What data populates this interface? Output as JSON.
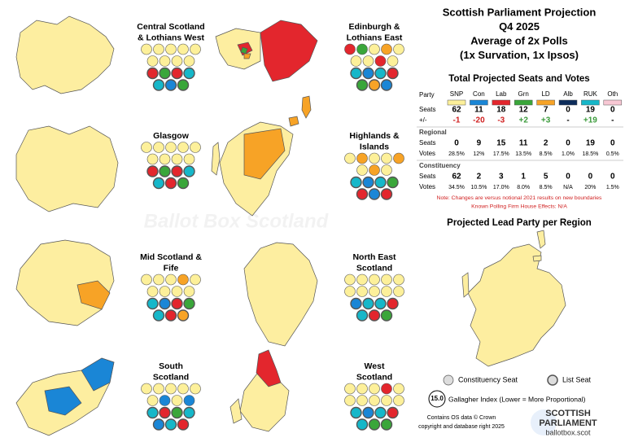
{
  "header": {
    "title_lines": [
      "Scottish Parliament Projection",
      "Q4 2025",
      "Average of 2x Polls",
      "(1x Survation, 1x Ipsos)"
    ]
  },
  "watermark": "Ballot Box Scotland",
  "regions": [
    {
      "title_lines": [
        "Central Scotland",
        "& Lothians West"
      ],
      "constituency": [
        "SNP",
        "SNP",
        "SNP",
        "SNP",
        "SNP",
        "SNP",
        "SNP",
        "SNP",
        "SNP"
      ],
      "list": [
        "Lab",
        "Grn",
        "Lab",
        "RUK",
        "RUK",
        "Con",
        "Grn"
      ]
    },
    {
      "title_lines": [
        "Edinburgh &",
        "Lothians East"
      ],
      "constituency": [
        "Lab",
        "Grn",
        "SNP",
        "LD",
        "SNP",
        "SNP",
        "SNP",
        "Lab",
        "SNP"
      ],
      "list": [
        "RUK",
        "Con",
        "RUK",
        "Lab",
        "Grn",
        "LD",
        "Con"
      ]
    },
    {
      "title_lines": [
        "Glasgow"
      ],
      "constituency": [
        "SNP",
        "SNP",
        "SNP",
        "SNP",
        "SNP",
        "SNP",
        "SNP",
        "SNP",
        "SNP"
      ],
      "list": [
        "Lab",
        "Grn",
        "Lab",
        "RUK",
        "RUK",
        "Lab",
        "Grn"
      ]
    },
    {
      "title_lines": [
        "Highlands &",
        "Islands"
      ],
      "constituency": [
        "SNP",
        "LD",
        "SNP",
        "SNP",
        "LD",
        "SNP",
        "LD",
        "SNP"
      ],
      "list": [
        "RUK",
        "Con",
        "RUK",
        "Grn",
        "Lab",
        "Con",
        "Lab"
      ]
    },
    {
      "title_lines": [
        "Mid Scotland &",
        "Fife"
      ],
      "constituency": [
        "SNP",
        "SNP",
        "SNP",
        "LD",
        "SNP",
        "SNP",
        "SNP",
        "SNP",
        "SNP"
      ],
      "list": [
        "RUK",
        "Con",
        "Lab",
        "Grn",
        "RUK",
        "Lab",
        "LD"
      ]
    },
    {
      "title_lines": [
        "North East",
        "Scotland"
      ],
      "constituency": [
        "SNP",
        "SNP",
        "SNP",
        "SNP",
        "SNP",
        "SNP",
        "SNP",
        "SNP",
        "SNP",
        "SNP"
      ],
      "list": [
        "Con",
        "RUK",
        "RUK",
        "Lab",
        "RUK",
        "Lab",
        "Grn"
      ]
    },
    {
      "title_lines": [
        "South",
        "Scotland"
      ],
      "constituency": [
        "SNP",
        "SNP",
        "SNP",
        "SNP",
        "SNP",
        "SNP",
        "Con",
        "SNP",
        "Con"
      ],
      "list": [
        "RUK",
        "Lab",
        "Grn",
        "RUK",
        "Con",
        "RUK",
        "Lab"
      ]
    },
    {
      "title_lines": [
        "West",
        "Scotland"
      ],
      "constituency": [
        "SNP",
        "SNP",
        "SNP",
        "Lab",
        "SNP",
        "SNP",
        "SNP",
        "SNP",
        "SNP",
        "SNP"
      ],
      "list": [
        "RUK",
        "Con",
        "RUK",
        "Lab",
        "RUK",
        "Grn",
        "Grn"
      ]
    }
  ],
  "table": {
    "title": "Total Projected Seats and Votes",
    "party_label": "Party",
    "parties": [
      {
        "name": "SNP",
        "color": "#fdf09a"
      },
      {
        "name": "Con",
        "color": "#1a86d6"
      },
      {
        "name": "Lab",
        "color": "#e3262d"
      },
      {
        "name": "Grn",
        "color": "#3aa63a"
      },
      {
        "name": "LD",
        "color": "#f7a326"
      },
      {
        "name": "Alb",
        "color": "#0c2b5a"
      },
      {
        "name": "RUK",
        "color": "#16b7c9"
      },
      {
        "name": "Oth",
        "color": "#f8c8d4"
      }
    ],
    "rows": [
      {
        "label": "Seats",
        "cells": [
          "62",
          "11",
          "18",
          "12",
          "7",
          "0",
          "19",
          "0"
        ]
      },
      {
        "label": "+/-",
        "cells": [
          "-1",
          "-20",
          "-3",
          "+2",
          "+3",
          "-",
          "+19",
          "-"
        ]
      },
      {
        "section": "Regional"
      },
      {
        "label": "Seats",
        "cells": [
          "0",
          "9",
          "15",
          "11",
          "2",
          "0",
          "19",
          "0"
        ]
      },
      {
        "label": "Votes",
        "cells": [
          "28.5%",
          "12%",
          "17.5%",
          "13.5%",
          "8.5%",
          "1.0%",
          "18.5%",
          "0.5%"
        ]
      },
      {
        "section": "Constituency"
      },
      {
        "label": "Seats",
        "cells": [
          "62",
          "2",
          "3",
          "1",
          "5",
          "0",
          "0",
          "0"
        ]
      },
      {
        "label": "Votes",
        "cells": [
          "34.5%",
          "10.5%",
          "17.0%",
          "8.0%",
          "8.5%",
          "N/A",
          "20%",
          "1.5%"
        ]
      }
    ],
    "notes": [
      "Note: Changes are versus notional 2021 results on new boundaries",
      "Known Polling Firm House Effects: N/A"
    ]
  },
  "lead_map": {
    "title": "Projected Lead Party per Region"
  },
  "legend": {
    "constituency": "Constituency Seat",
    "list": "List Seat",
    "gallagher_value": "15.0",
    "gallagher_label": "Gallagher Index (Lower = More Proportional)"
  },
  "footer": {
    "lines": [
      "Contains OS data © Crown",
      "copyright and database right 2025"
    ]
  },
  "logo": {
    "line1": "SCOTTISH",
    "line2": "PARLIAMENT",
    "site": "ballotbox.scot"
  }
}
